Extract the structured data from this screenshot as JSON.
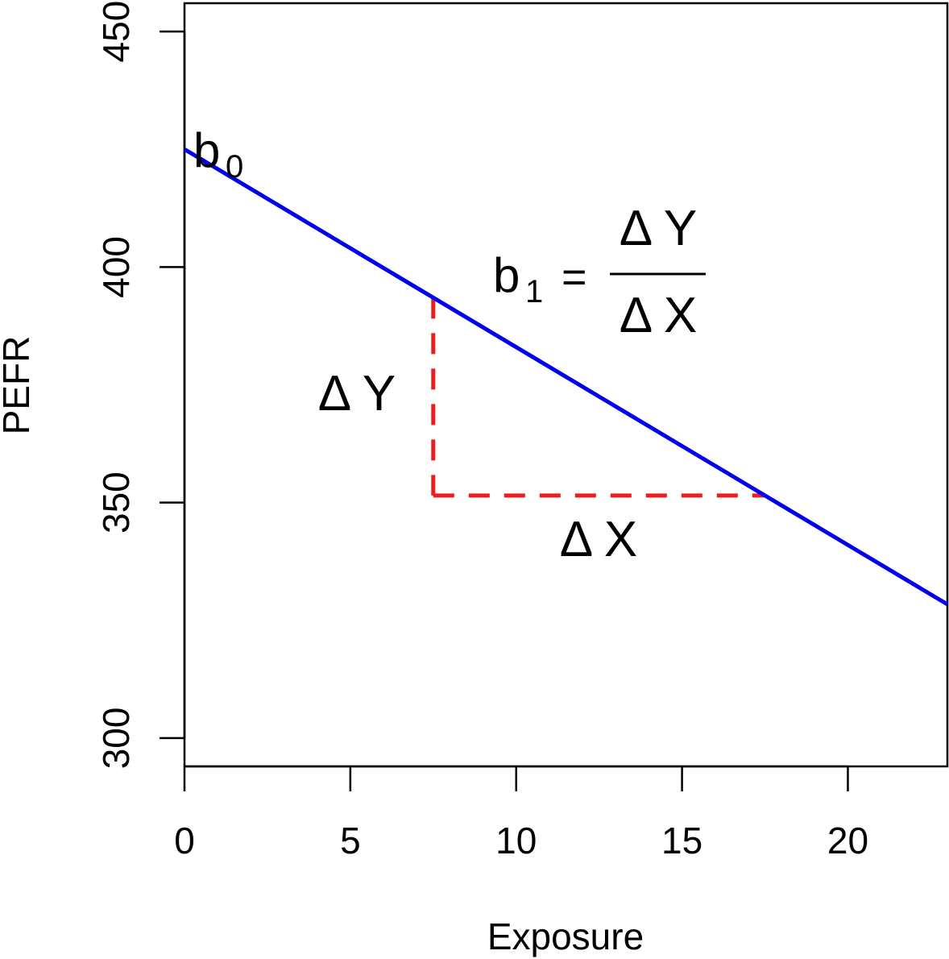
{
  "chart_data": {
    "type": "line",
    "title": "",
    "xlabel": "Exposure",
    "ylabel": "PEFR",
    "xlim": [
      0,
      23
    ],
    "ylim": [
      294,
      456
    ],
    "x_ticks": [
      0,
      5,
      10,
      15,
      20
    ],
    "x_tick_labels": [
      "0",
      "5",
      "10",
      "15",
      "20"
    ],
    "y_ticks": [
      300,
      350,
      400,
      450
    ],
    "y_tick_labels": [
      "300",
      "350",
      "400",
      "450"
    ],
    "grid": false,
    "legend": "none",
    "series": [
      {
        "x": [
          0,
          23
        ],
        "y": [
          425.0,
          328.4
        ],
        "color": "#0000ee",
        "style": "solid"
      }
    ],
    "guides": {
      "color": "#ee1c1c",
      "style": "dashed",
      "x_start": 7.5,
      "x_end": 17.5,
      "y_low": 351.5,
      "y_high": 393.5
    },
    "annotations": {
      "intercept": {
        "main": "b",
        "sub": "0"
      },
      "slope": {
        "main": "b",
        "sub": "1",
        "equals": "=",
        "numerator": "Δ Y",
        "denominator": "Δ X"
      },
      "delta_y": "Δ Y",
      "delta_x": "Δ X"
    }
  }
}
